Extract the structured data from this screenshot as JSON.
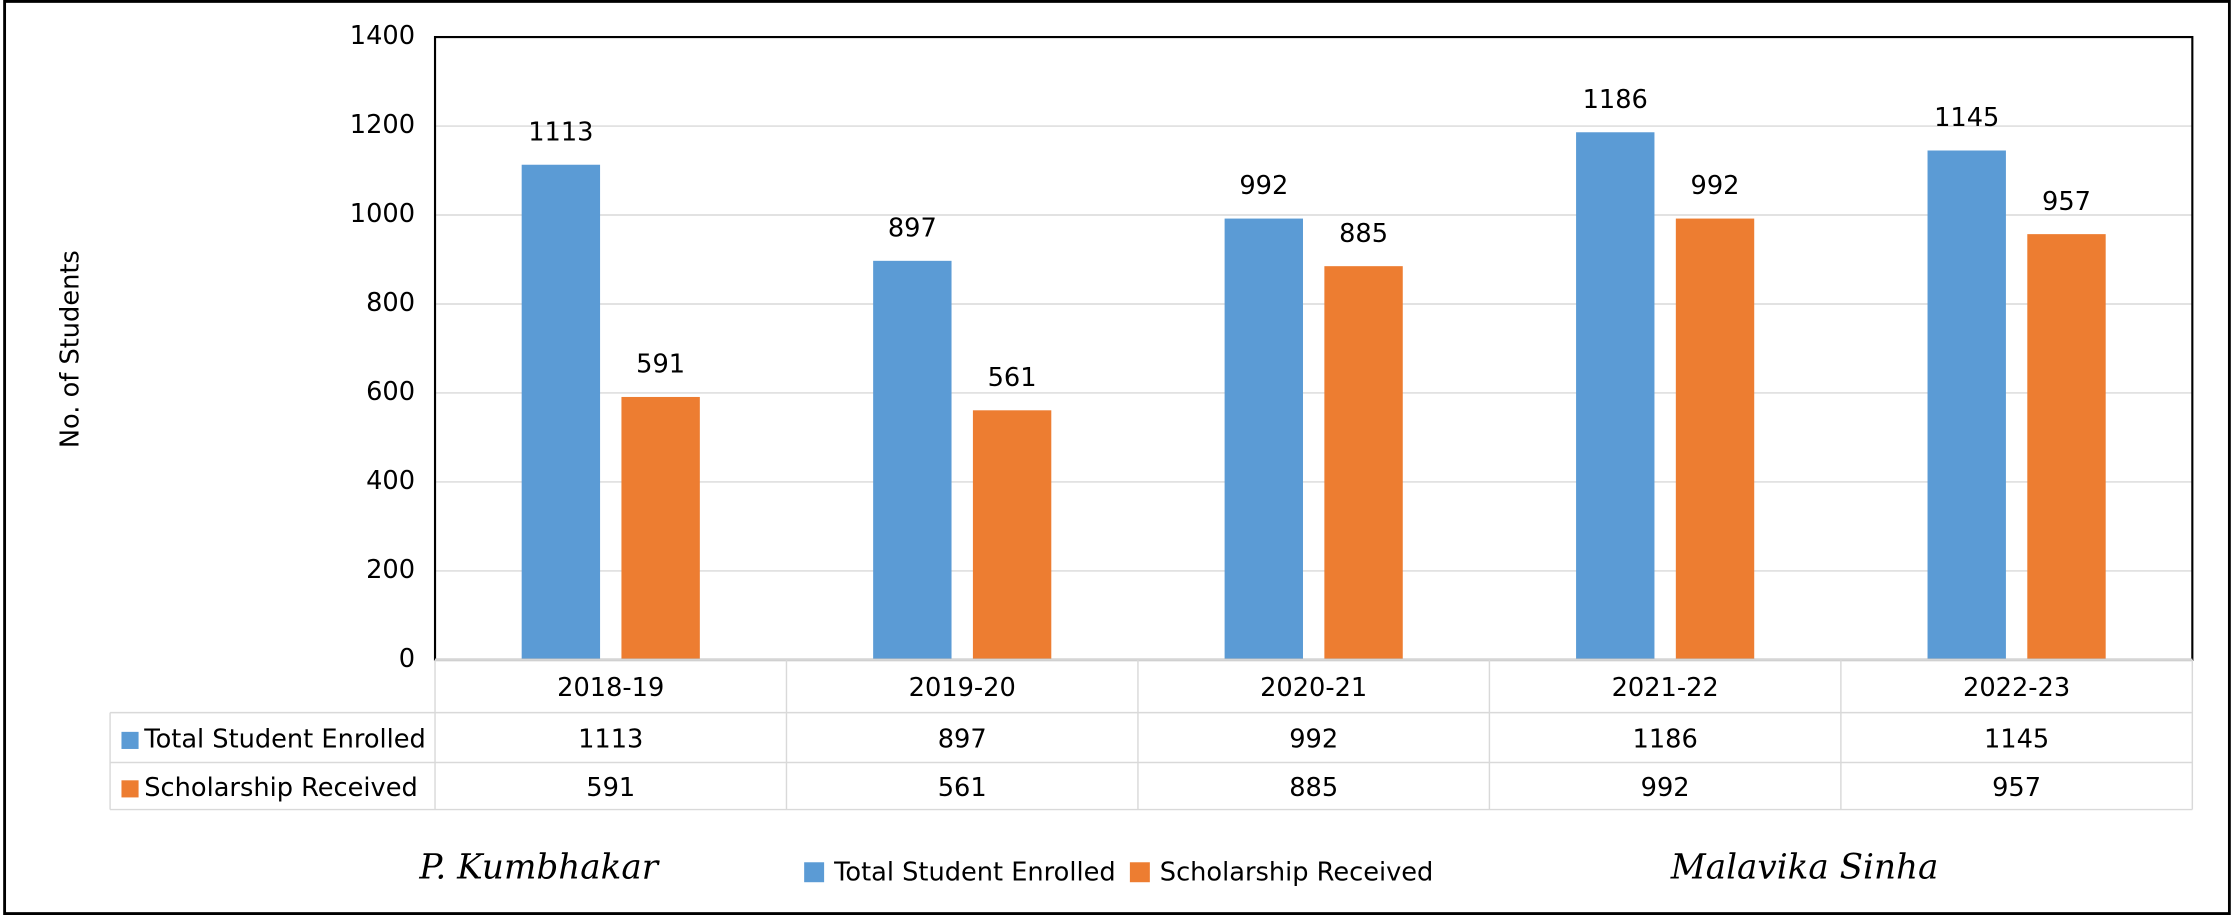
{
  "chart_data": {
    "type": "bar",
    "y_label": "No. of Students",
    "categories": [
      "2018-19",
      "2019-20",
      "2020-21",
      "2021-22",
      "2022-23"
    ],
    "series": [
      {
        "name": "Total Student Enrolled",
        "color": "#5b9bd5",
        "values": [
          1113,
          897,
          992,
          1186,
          1145
        ]
      },
      {
        "name": "Scholarship Received",
        "color": "#ed7d31",
        "values": [
          591,
          561,
          885,
          992,
          957
        ]
      }
    ],
    "ylim": [
      0,
      1400
    ],
    "yticks": [
      0,
      200,
      400,
      600,
      800,
      1000,
      1200,
      1400
    ],
    "grid": true,
    "data_table": true,
    "legend": "bottom",
    "signatures": [
      "P. Kumbhakar",
      "Malavika Sinha"
    ]
  }
}
